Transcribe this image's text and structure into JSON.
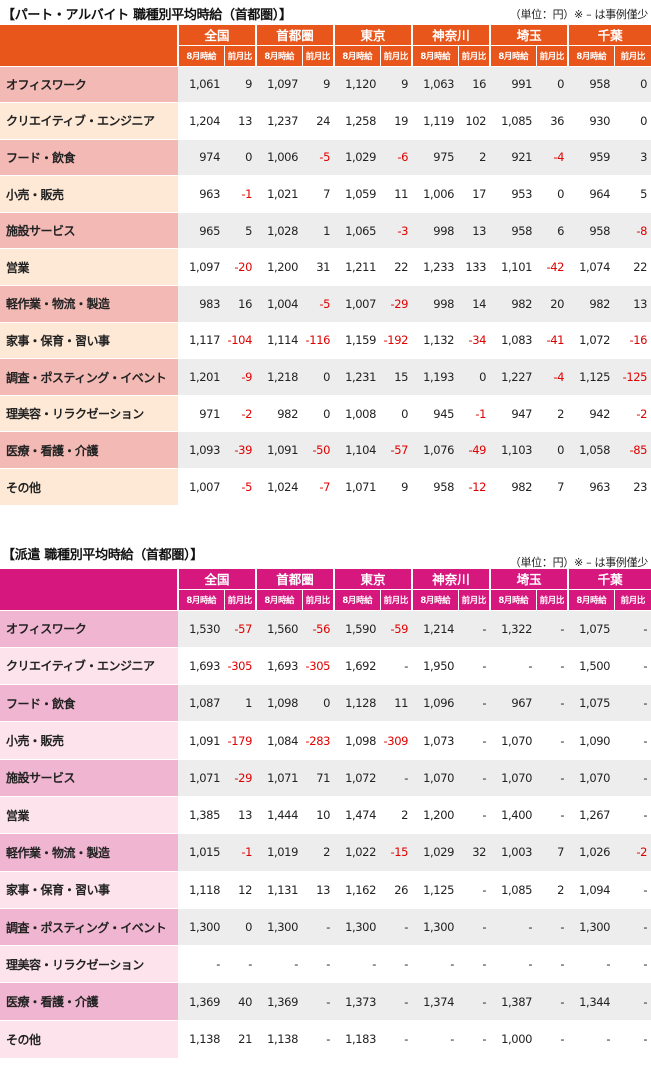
{
  "part_time": {
    "title": "【パート・アルバイト 職種別平均時給（首都圏）】",
    "unit_note": "（単位：円）※ – は事例僅少",
    "regions": [
      "全国",
      "首都圏",
      "東京",
      "神奈川",
      "埼玉",
      "千葉"
    ],
    "sub_headers": [
      "8月時給",
      "前月比"
    ],
    "rows": [
      {
        "category": "オフィスワーク",
        "values": [
          "1,061",
          "9",
          "1,097",
          "9",
          "1,120",
          "9",
          "1,063",
          "16",
          "991",
          "0",
          "958",
          "0"
        ]
      },
      {
        "category": "クリエイティブ・エンジニア",
        "values": [
          "1,204",
          "13",
          "1,237",
          "24",
          "1,258",
          "19",
          "1,119",
          "102",
          "1,085",
          "36",
          "930",
          "0"
        ]
      },
      {
        "category": "フード・飲食",
        "values": [
          "974",
          "0",
          "1,006",
          "-5",
          "1,029",
          "-6",
          "975",
          "2",
          "921",
          "-4",
          "959",
          "3"
        ]
      },
      {
        "category": "小売・販売",
        "values": [
          "963",
          "-1",
          "1,021",
          "7",
          "1,059",
          "11",
          "1,006",
          "17",
          "953",
          "0",
          "964",
          "5"
        ]
      },
      {
        "category": "施設サービス",
        "values": [
          "965",
          "5",
          "1,028",
          "1",
          "1,065",
          "-3",
          "998",
          "13",
          "958",
          "6",
          "958",
          "-8"
        ]
      },
      {
        "category": "営業",
        "values": [
          "1,097",
          "-20",
          "1,200",
          "31",
          "1,211",
          "22",
          "1,233",
          "133",
          "1,101",
          "-42",
          "1,074",
          "22"
        ]
      },
      {
        "category": "軽作業・物流・製造",
        "values": [
          "983",
          "16",
          "1,004",
          "-5",
          "1,007",
          "-29",
          "998",
          "14",
          "982",
          "20",
          "982",
          "13"
        ]
      },
      {
        "category": "家事・保育・習い事",
        "values": [
          "1,117",
          "-104",
          "1,114",
          "-116",
          "1,159",
          "-192",
          "1,132",
          "-34",
          "1,083",
          "-41",
          "1,072",
          "-16"
        ]
      },
      {
        "category": "調査・ポスティング・イベント",
        "values": [
          "1,201",
          "-9",
          "1,218",
          "0",
          "1,231",
          "15",
          "1,193",
          "0",
          "1,227",
          "-4",
          "1,125",
          "-125"
        ]
      },
      {
        "category": "理美容・リラクゼーション",
        "values": [
          "971",
          "-2",
          "982",
          "0",
          "1,008",
          "0",
          "945",
          "-1",
          "947",
          "2",
          "942",
          "-2"
        ]
      },
      {
        "category": "医療・看護・介護",
        "values": [
          "1,093",
          "-39",
          "1,091",
          "-50",
          "1,104",
          "-57",
          "1,076",
          "-49",
          "1,103",
          "0",
          "1,058",
          "-85"
        ]
      },
      {
        "category": "その他",
        "values": [
          "1,007",
          "-5",
          "1,024",
          "-7",
          "1,071",
          "9",
          "958",
          "-12",
          "982",
          "7",
          "963",
          "23"
        ]
      }
    ]
  },
  "dispatch": {
    "title": "【派遣 職種別平均時給（首都圏）】",
    "unit_note": "（単位：円）※ – は事例僅少",
    "regions": [
      "全国",
      "首都圏",
      "東京",
      "神奈川",
      "埼玉",
      "千葉"
    ],
    "sub_headers": [
      "8月時給",
      "前月比"
    ],
    "rows": [
      {
        "category": "オフィスワーク",
        "values": [
          "1,530",
          "-57",
          "1,560",
          "-56",
          "1,590",
          "-59",
          "1,214",
          "-",
          "1,322",
          "-",
          "1,075",
          "-"
        ]
      },
      {
        "category": "クリエイティブ・エンジニア",
        "values": [
          "1,693",
          "-305",
          "1,693",
          "-305",
          "1,692",
          "-",
          "1,950",
          "-",
          "-",
          "-",
          "1,500",
          "-"
        ]
      },
      {
        "category": "フード・飲食",
        "values": [
          "1,087",
          "1",
          "1,098",
          "0",
          "1,128",
          "11",
          "1,096",
          "-",
          "967",
          "-",
          "1,075",
          "-"
        ]
      },
      {
        "category": "小売・販売",
        "values": [
          "1,091",
          "-179",
          "1,084",
          "-283",
          "1,098",
          "-309",
          "1,073",
          "-",
          "1,070",
          "-",
          "1,090",
          "-"
        ]
      },
      {
        "category": "施設サービス",
        "values": [
          "1,071",
          "-29",
          "1,071",
          "71",
          "1,072",
          "-",
          "1,070",
          "-",
          "1,070",
          "-",
          "1,070",
          "-"
        ]
      },
      {
        "category": "営業",
        "values": [
          "1,385",
          "13",
          "1,444",
          "10",
          "1,474",
          "2",
          "1,200",
          "-",
          "1,400",
          "-",
          "1,267",
          "-"
        ]
      },
      {
        "category": "軽作業・物流・製造",
        "values": [
          "1,015",
          "-1",
          "1,019",
          "2",
          "1,022",
          "-15",
          "1,029",
          "32",
          "1,003",
          "7",
          "1,026",
          "-2"
        ]
      },
      {
        "category": "家事・保育・習い事",
        "values": [
          "1,118",
          "12",
          "1,131",
          "13",
          "1,162",
          "26",
          "1,125",
          "-",
          "1,085",
          "2",
          "1,094",
          "-"
        ]
      },
      {
        "category": "調査・ポスティング・イベント",
        "values": [
          "1,300",
          "0",
          "1,300",
          "-",
          "1,300",
          "-",
          "1,300",
          "-",
          "-",
          "-",
          "1,300",
          "-"
        ]
      },
      {
        "category": "理美容・リラクゼーション",
        "values": [
          "-",
          "-",
          "-",
          "-",
          "-",
          "-",
          "-",
          "-",
          "-",
          "-",
          "-",
          "-"
        ]
      },
      {
        "category": "医療・看護・介護",
        "values": [
          "1,369",
          "40",
          "1,369",
          "-",
          "1,373",
          "-",
          "1,374",
          "-",
          "1,387",
          "-",
          "1,344",
          "-"
        ]
      },
      {
        "category": "その他",
        "values": [
          "1,138",
          "21",
          "1,138",
          "-",
          "1,183",
          "-",
          "-",
          "-",
          "1,000",
          "-",
          "-",
          "-"
        ]
      }
    ]
  }
}
